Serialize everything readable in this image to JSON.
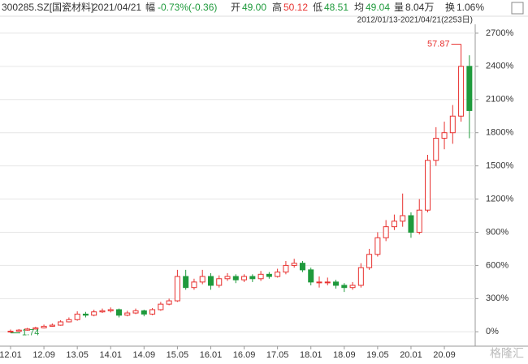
{
  "header": {
    "code": "300285.SZ[国瓷材料]",
    "date": "2021/04/21",
    "change_label": "幅",
    "change": "-0.73%(-0.36)",
    "open_label": "开",
    "open": "49.00",
    "high_label": "高",
    "high": "50.12",
    "low_label": "低",
    "low": "48.51",
    "avg_label": "均",
    "avg": "49.04",
    "vol_label": "量",
    "vol": "8.04万",
    "turnover_label": "换",
    "turnover": "1.06%"
  },
  "chart_data": {
    "type": "candlestick",
    "range": "2012/01/13-2021/04/21(2253日)",
    "watermark": "格隆汇",
    "up_color": "#e8312f",
    "down_color": "#1f9a3c",
    "categories": [
      "12.01",
      null,
      null,
      null,
      "12.09",
      null,
      null,
      null,
      "13.05",
      null,
      null,
      null,
      "14.01",
      null,
      null,
      null,
      "14.09",
      null,
      null,
      null,
      "15.05",
      null,
      null,
      null,
      "16.01",
      null,
      null,
      null,
      "16.09",
      null,
      null,
      null,
      "17.05",
      null,
      null,
      null,
      "18.01",
      null,
      null,
      null,
      "18.09",
      null,
      null,
      null,
      "19.05",
      null,
      null,
      null,
      "20.01",
      null,
      null,
      null,
      "20.09",
      null,
      null,
      null
    ],
    "open": [
      0,
      5,
      15,
      25,
      35,
      50,
      60,
      90,
      110,
      160,
      150,
      180,
      190,
      200,
      150,
      170,
      190,
      160,
      200,
      250,
      280,
      500,
      400,
      450,
      500,
      420,
      480,
      500,
      470,
      500,
      480,
      520,
      500,
      540,
      600,
      620,
      560,
      450,
      450,
      450,
      420,
      400,
      420,
      580,
      700,
      850,
      950,
      1000,
      1050,
      900,
      1100,
      1550,
      1750,
      1800,
      1950,
      2400
    ],
    "high": [
      20,
      25,
      35,
      45,
      65,
      75,
      105,
      130,
      185,
      180,
      200,
      210,
      220,
      210,
      190,
      210,
      200,
      215,
      270,
      300,
      560,
      560,
      480,
      560,
      530,
      510,
      530,
      520,
      520,
      520,
      550,
      540,
      570,
      640,
      660,
      640,
      580,
      500,
      490,
      470,
      440,
      450,
      620,
      750,
      900,
      1010,
      1060,
      1250,
      1080,
      1200,
      1600,
      1850,
      1900,
      2050,
      2600,
      2500
    ],
    "low": [
      -10,
      0,
      10,
      20,
      30,
      45,
      55,
      85,
      100,
      130,
      140,
      170,
      175,
      130,
      140,
      160,
      140,
      150,
      190,
      240,
      270,
      380,
      380,
      430,
      380,
      400,
      460,
      440,
      450,
      450,
      460,
      480,
      490,
      520,
      580,
      540,
      420,
      400,
      420,
      390,
      360,
      380,
      400,
      560,
      680,
      820,
      920,
      950,
      850,
      880,
      1080,
      1500,
      1650,
      1700,
      1900,
      1750
    ],
    "close": [
      5,
      15,
      25,
      35,
      50,
      60,
      90,
      110,
      160,
      150,
      180,
      190,
      200,
      150,
      170,
      190,
      160,
      200,
      250,
      280,
      500,
      400,
      450,
      500,
      420,
      480,
      500,
      470,
      500,
      480,
      520,
      500,
      540,
      600,
      620,
      560,
      450,
      450,
      450,
      420,
      400,
      420,
      580,
      700,
      850,
      950,
      1000,
      1050,
      900,
      1100,
      1550,
      1750,
      1800,
      1950,
      2400,
      2000
    ],
    "annotations": [
      {
        "text": "57.87",
        "index": 54
      },
      {
        "text": "1.74",
        "index": 0
      }
    ],
    "ylim": [
      -130,
      2780
    ],
    "yticks": [
      {
        "value": 0,
        "label": "0%"
      },
      {
        "value": 300,
        "label": "300%"
      },
      {
        "value": 600,
        "label": "600%"
      },
      {
        "value": 900,
        "label": "900%"
      },
      {
        "value": 1200,
        "label": "1200%"
      },
      {
        "value": 1500,
        "label": "1500%"
      },
      {
        "value": 1800,
        "label": "1800%"
      },
      {
        "value": 2100,
        "label": "2100%"
      },
      {
        "value": 2400,
        "label": "2400%"
      },
      {
        "value": 2700,
        "label": "2700%"
      }
    ],
    "grid": true
  }
}
